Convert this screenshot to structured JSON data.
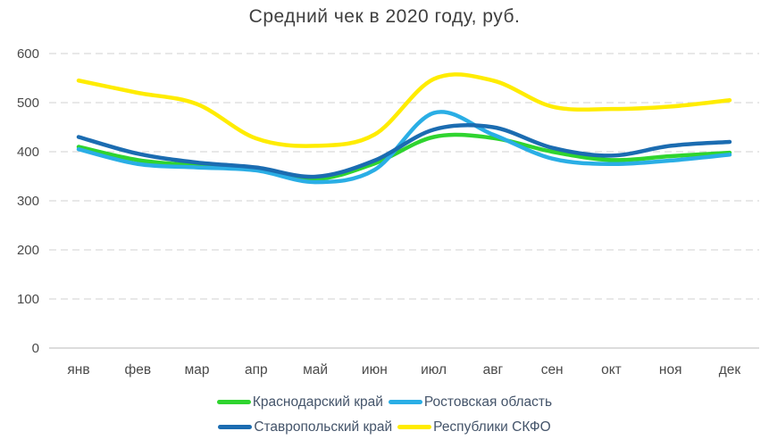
{
  "chart_data": {
    "type": "line",
    "title": "Средний чек в 2020 году, руб.",
    "xlabel": "",
    "ylabel": "",
    "ylim": [
      0,
      600
    ],
    "y_ticks": [
      0,
      100,
      200,
      300,
      400,
      500,
      600
    ],
    "grid": "dashed-horizontal",
    "legend_position": "bottom",
    "categories": [
      "янв",
      "фев",
      "мар",
      "апр",
      "май",
      "июн",
      "июл",
      "авг",
      "сен",
      "окт",
      "ноя",
      "дек"
    ],
    "series": [
      {
        "name": "Краснодарский край",
        "color": "#2fd42f",
        "values": [
          410,
          383,
          372,
          366,
          344,
          376,
          430,
          428,
          400,
          383,
          391,
          398
        ]
      },
      {
        "name": "Ростовская область",
        "color": "#2aaee5",
        "values": [
          405,
          375,
          368,
          362,
          338,
          363,
          479,
          435,
          386,
          375,
          382,
          394
        ]
      },
      {
        "name": "Ставропольский край",
        "color": "#1b6cb1",
        "values": [
          430,
          396,
          378,
          368,
          349,
          382,
          445,
          450,
          408,
          392,
          412,
          420
        ]
      },
      {
        "name": "Республики СКФО",
        "color": "#ffec00",
        "values": [
          545,
          520,
          497,
          427,
          412,
          435,
          548,
          545,
          492,
          487,
          492,
          505
        ]
      }
    ],
    "legend_rows": [
      [
        0,
        1
      ],
      [
        2,
        3
      ]
    ],
    "colors": {
      "title_text": "#3f3f3f",
      "tick_text": "#4a4a4a",
      "legend_text": "#44546a",
      "gridline": "#d9d9d9",
      "axis_line": "#d0d0d0",
      "background": "#ffffff"
    }
  }
}
